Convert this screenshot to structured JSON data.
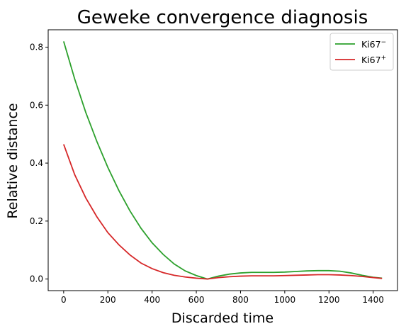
{
  "chart_data": {
    "type": "line",
    "title": "Geweke convergence diagnosis",
    "xlabel": "Discarded time",
    "ylabel": "Relative distance",
    "xlim": [
      -70,
      1510
    ],
    "ylim": [
      -0.04,
      0.86
    ],
    "xticks": [
      0,
      200,
      400,
      600,
      800,
      1000,
      1200,
      1400
    ],
    "yticks": [
      0.0,
      0.2,
      0.4,
      0.6,
      0.8
    ],
    "xtick_labels": [
      "0",
      "200",
      "400",
      "600",
      "800",
      "1000",
      "1200",
      "1400"
    ],
    "ytick_labels": [
      "0.0",
      "0.2",
      "0.4",
      "0.6",
      "0.8"
    ],
    "grid": false,
    "legend_position": "top-right",
    "series": [
      {
        "name": "Ki67",
        "name_sup": "−",
        "color": "#2ca02c",
        "x": [
          0,
          50,
          100,
          150,
          200,
          250,
          300,
          350,
          400,
          450,
          500,
          550,
          600,
          650,
          700,
          750,
          800,
          850,
          900,
          950,
          1000,
          1050,
          1100,
          1150,
          1200,
          1250,
          1300,
          1350,
          1400,
          1440
        ],
        "y": [
          0.82,
          0.69,
          0.575,
          0.475,
          0.385,
          0.305,
          0.235,
          0.175,
          0.125,
          0.085,
          0.052,
          0.028,
          0.012,
          0.0,
          0.01,
          0.017,
          0.021,
          0.023,
          0.023,
          0.023,
          0.024,
          0.026,
          0.028,
          0.029,
          0.029,
          0.027,
          0.021,
          0.013,
          0.006,
          0.003
        ]
      },
      {
        "name": "Ki67",
        "name_sup": "+",
        "color": "#d62728",
        "x": [
          0,
          50,
          100,
          150,
          200,
          250,
          300,
          350,
          400,
          450,
          500,
          550,
          600,
          650,
          700,
          750,
          800,
          850,
          900,
          950,
          1000,
          1050,
          1100,
          1150,
          1200,
          1250,
          1300,
          1350,
          1400,
          1440
        ],
        "y": [
          0.465,
          0.36,
          0.28,
          0.215,
          0.16,
          0.118,
          0.083,
          0.055,
          0.036,
          0.022,
          0.013,
          0.007,
          0.003,
          0.0,
          0.005,
          0.008,
          0.01,
          0.011,
          0.011,
          0.011,
          0.012,
          0.013,
          0.014,
          0.015,
          0.015,
          0.014,
          0.012,
          0.009,
          0.005,
          0.002
        ]
      }
    ]
  }
}
